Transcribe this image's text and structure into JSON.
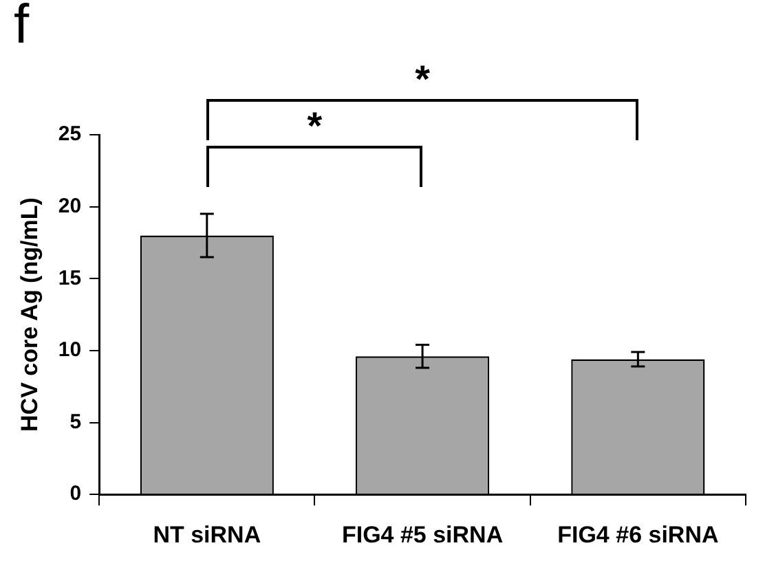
{
  "chart_data": {
    "type": "bar",
    "ylabel": "HCV core Ag (ng/mL)",
    "categories": [
      "NT siRNA",
      "FIG4 #5 siRNA",
      "FIG4 #6 siRNA"
    ],
    "values": [
      18,
      9.6,
      9.4
    ],
    "color": "#a6a6a6",
    "errors": [
      1.5,
      0.8,
      0.5
    ],
    "ylim": [
      0,
      25
    ],
    "yticks": [
      0,
      5,
      10,
      15,
      20,
      25
    ],
    "annotations": [
      "f",
      "*",
      "*"
    ]
  }
}
